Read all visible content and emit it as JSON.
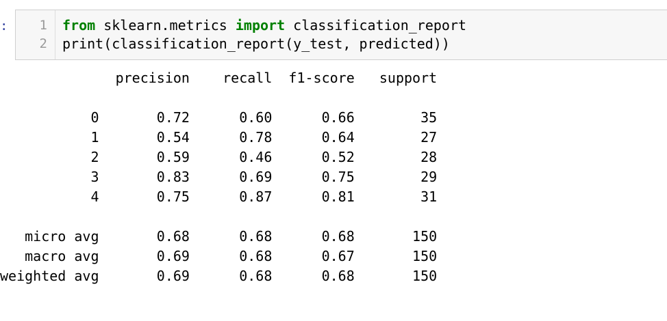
{
  "prompt": ":",
  "input_cell": {
    "line_numbers": [
      "1",
      "2"
    ],
    "line1": {
      "kw_from": "from",
      "module": " sklearn.metrics ",
      "kw_import": "import",
      "name": " classification_report"
    },
    "line2": "print(classification_report(y_test, predicted))"
  },
  "output": {
    "header": "              precision    recall  f1-score   support",
    "rows": [
      "           0       0.72      0.60      0.66        35",
      "           1       0.54      0.78      0.64        27",
      "           2       0.59      0.46      0.52        28",
      "           3       0.83      0.69      0.75        29",
      "           4       0.75      0.87      0.81        31"
    ],
    "avg_rows": [
      "   micro avg       0.68      0.68      0.68       150",
      "   macro avg       0.69      0.68      0.67       150",
      "weighted avg       0.69      0.68      0.68       150"
    ]
  },
  "colors": {
    "keyword": "#008000",
    "prompt": "#303f9f",
    "cell_background": "#f7f7f7",
    "cell_border": "#cfcfcf",
    "line_number": "#999999"
  }
}
